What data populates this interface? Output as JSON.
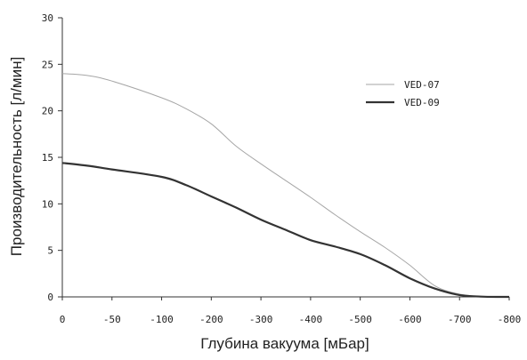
{
  "chart_data": {
    "type": "line",
    "title": "",
    "xlabel": "Глубина вакуума [мБар]",
    "ylabel": "Производительность [л/мин]",
    "xlim": [
      0,
      -800
    ],
    "ylim": [
      0,
      30
    ],
    "x_ticks": [
      "0",
      "-50",
      "-100",
      "-200",
      "-300",
      "-400",
      "-500",
      "-600",
      "-700",
      "-800"
    ],
    "y_ticks": [
      "0",
      "5",
      "10",
      "15",
      "20",
      "25",
      "30"
    ],
    "grid": false,
    "legend_position": "right",
    "series": [
      {
        "name": "VED-07",
        "color": "#a6a6a6",
        "x": [
          0,
          -25,
          -50,
          -100,
          -150,
          -200,
          -250,
          -300,
          -350,
          -400,
          -450,
          -500,
          -550,
          -600,
          -650,
          -700,
          -750,
          -800
        ],
        "y": [
          24.0,
          23.8,
          23.2,
          21.4,
          20.2,
          18.6,
          16.2,
          14.3,
          12.5,
          10.7,
          8.8,
          7.0,
          5.3,
          3.4,
          1.2,
          0.3,
          0.05,
          0
        ]
      },
      {
        "name": "VED-09",
        "color": "#333333",
        "x": [
          0,
          -25,
          -50,
          -100,
          -150,
          -200,
          -250,
          -300,
          -350,
          -400,
          -450,
          -500,
          -550,
          -600,
          -650,
          -700,
          -750,
          -800
        ],
        "y": [
          14.4,
          14.1,
          13.7,
          12.9,
          12.0,
          10.8,
          9.6,
          8.3,
          7.2,
          6.1,
          5.4,
          4.6,
          3.4,
          2.0,
          0.9,
          0.2,
          0.02,
          0
        ]
      }
    ]
  }
}
